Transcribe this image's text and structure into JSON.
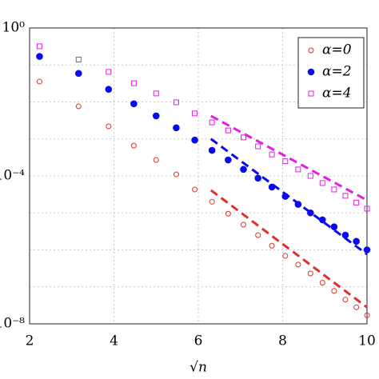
{
  "chart_data": {
    "type": "scatter",
    "xlabel": "√n",
    "xlim": [
      2,
      10
    ],
    "xticks": [
      2,
      4,
      6,
      8,
      10
    ],
    "ylim": [
      1e-08,
      1
    ],
    "log_y": true,
    "yticks": [
      {
        "value": 1,
        "label": "10⁰"
      },
      {
        "value": 0.0001,
        "label": "10⁻⁴"
      },
      {
        "value": 1e-08,
        "label": "10⁻⁸"
      }
    ],
    "minor_yticks": [
      0.1,
      0.01,
      0.001,
      1e-05,
      1e-06,
      1e-07
    ],
    "grid": true,
    "legend": "upper right",
    "x": [
      2.236,
      3.162,
      3.873,
      4.472,
      5,
      5.477,
      5.916,
      6.325,
      6.708,
      7.071,
      7.416,
      7.746,
      8.062,
      8.367,
      8.66,
      8.944,
      9.22,
      9.487,
      9.747,
      10
    ],
    "series": [
      {
        "name": "α=0",
        "color": "#e0302a",
        "marker": "circle-open",
        "values": [
          0.0355,
          0.00759,
          0.00219,
          0.00066,
          0.00027,
          0.00011,
          4.3e-05,
          2e-05,
          9.5e-06,
          4.8e-06,
          2.5e-06,
          1.3e-06,
          6.9e-07,
          4e-07,
          2.3e-07,
          1.3e-07,
          7.8e-08,
          4.5e-08,
          2.8e-08,
          1.7e-08
        ]
      },
      {
        "name": "α=2",
        "color": "#0a0aee",
        "marker": "circle-filled",
        "values": [
          0.17,
          0.059,
          0.022,
          0.0089,
          0.0042,
          0.002,
          0.00093,
          0.00049,
          0.00027,
          0.00015,
          8.7e-05,
          5e-05,
          2.8e-05,
          1.7e-05,
          1e-05,
          6.5e-06,
          4.2e-06,
          2.5e-06,
          1.7e-06,
          1e-06
        ]
      },
      {
        "name": "α=4",
        "color": "#e020e0",
        "marker": "square-open",
        "values": [
          0.32,
          0.14,
          0.065,
          0.032,
          0.017,
          0.0098,
          0.0049,
          0.0028,
          0.0017,
          0.0011,
          0.00063,
          0.00038,
          0.00025,
          0.00015,
          0.0001,
          6.4e-05,
          4.3e-05,
          2.9e-05,
          1.9e-05,
          1.3e-05
        ]
      }
    ],
    "trend_lines": [
      {
        "color": "#e0302a",
        "x": [
          6.3,
          10
        ],
        "values": [
          4.1e-05,
          2.8e-08
        ]
      },
      {
        "color": "#0a0aee",
        "x": [
          6.3,
          10
        ],
        "values": [
          0.001,
          7.6e-07
        ]
      },
      {
        "color": "#e020e0",
        "x": [
          6.3,
          10
        ],
        "values": [
          0.0042,
          2.2e-05
        ]
      }
    ]
  }
}
